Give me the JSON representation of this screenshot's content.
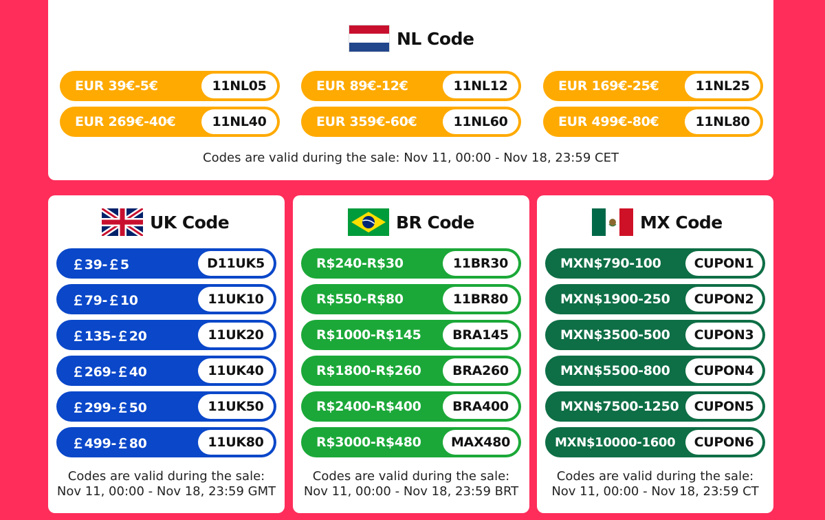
{
  "nl": {
    "title": "NL Code",
    "flag_icon": "netherlands-flag-icon",
    "accent": "#ffaa00",
    "rows": [
      {
        "range": "EUR 39€-5€",
        "code": "11NL05"
      },
      {
        "range": "EUR 89€-12€",
        "code": "11NL12"
      },
      {
        "range": "EUR 169€-25€",
        "code": "11NL25"
      },
      {
        "range": "EUR 269€-40€",
        "code": "11NL40"
      },
      {
        "range": "EUR 359€-60€",
        "code": "11NL60"
      },
      {
        "range": "EUR 499€-80€",
        "code": "11NL80"
      }
    ],
    "validity": "Codes are valid during the sale: Nov 11, 00:00 - Nov 18, 23:59 CET"
  },
  "uk": {
    "title": "UK Code",
    "flag_icon": "united-kingdom-flag-icon",
    "accent": "#0a47c9",
    "rows": [
      {
        "range": "￡39-￡5",
        "code": "D11UK5"
      },
      {
        "range": "￡79-￡10",
        "code": "11UK10"
      },
      {
        "range": "￡135-￡20",
        "code": "11UK20"
      },
      {
        "range": "￡269-￡40",
        "code": "11UK40"
      },
      {
        "range": "￡299-￡50",
        "code": "11UK50"
      },
      {
        "range": "￡499-￡80",
        "code": "11UK80"
      }
    ],
    "validity_line1": "Codes are valid during the sale:",
    "validity_line2": "Nov 11, 00:00 - Nov 18, 23:59 GMT"
  },
  "br": {
    "title": "BR Code",
    "flag_icon": "brazil-flag-icon",
    "accent": "#1ba838",
    "rows": [
      {
        "range": "R$240-R$30",
        "code": "11BR30"
      },
      {
        "range": "R$550-R$80",
        "code": "11BR80"
      },
      {
        "range": "R$1000-R$145",
        "code": "BRA145"
      },
      {
        "range": "R$1800-R$260",
        "code": "BRA260"
      },
      {
        "range": "R$2400-R$400",
        "code": "BRA400"
      },
      {
        "range": "R$3000-R$480",
        "code": "MAX480"
      }
    ],
    "validity_line1": "Codes are valid during the sale:",
    "validity_line2": "Nov 11, 00:00 - Nov 18, 23:59 BRT"
  },
  "mx": {
    "title": "MX Code",
    "flag_icon": "mexico-flag-icon",
    "accent": "#0e6e45",
    "rows": [
      {
        "range": "MXN$790-100",
        "code": "CUPON1"
      },
      {
        "range": "MXN$1900-250",
        "code": "CUPON2"
      },
      {
        "range": "MXN$3500-500",
        "code": "CUPON3"
      },
      {
        "range": "MXN$5500-800",
        "code": "CUPON4"
      },
      {
        "range": "MXN$7500-1250",
        "code": "CUPON5"
      },
      {
        "range": "MXN$10000-1600",
        "code": "CUPON6"
      }
    ],
    "validity_line1": "Codes are valid during the sale:",
    "validity_line2": "Nov 11, 00:00 - Nov 18, 23:59 CT"
  },
  "background_color": "#fe2d5a"
}
